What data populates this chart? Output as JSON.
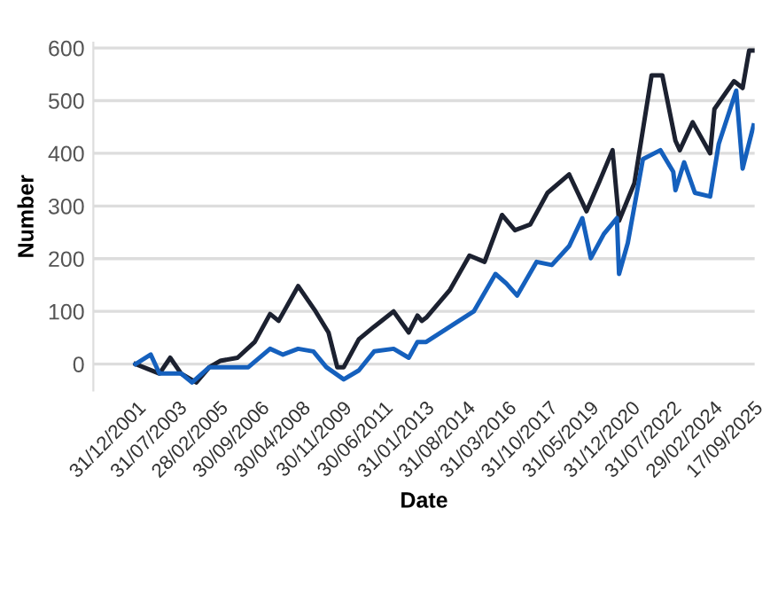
{
  "chart_data": {
    "type": "line",
    "xlabel": "Date",
    "ylabel": "Number",
    "series": [
      {
        "color": "#1c2130",
        "x": [
          "2001-12",
          "2002-11",
          "2003-04",
          "2003-09",
          "2004-04",
          "2004-10",
          "2005-03",
          "2005-11",
          "2006-07",
          "2007-02",
          "2007-06",
          "2008-03",
          "2008-11",
          "2009-05",
          "2009-09",
          "2009-12",
          "2010-07",
          "2011-02",
          "2011-11",
          "2012-06",
          "2012-10",
          "2012-12",
          "2013-02",
          "2014-01",
          "2014-10",
          "2015-05",
          "2016-01",
          "2016-07",
          "2017-02",
          "2017-10",
          "2018-08",
          "2019-04",
          "2019-10",
          "2020-04",
          "2020-07",
          "2021-02",
          "2021-10",
          "2022-03",
          "2022-09",
          "2022-11",
          "2023-05",
          "2024-01",
          "2024-03",
          "2024-12",
          "2025-04",
          "2025-07",
          "2025-09"
        ],
        "values": [
          0,
          -18,
          12,
          -18,
          -35,
          -6,
          6,
          12,
          42,
          95,
          82,
          148,
          100,
          60,
          -6,
          -6,
          47,
          71,
          100,
          60,
          92,
          82,
          88,
          141,
          206,
          194,
          283,
          254,
          265,
          325,
          360,
          290,
          347,
          406,
          272,
          343,
          548,
          548,
          424,
          406,
          459,
          400,
          484,
          537,
          524,
          595,
          595
        ]
      },
      {
        "color": "#1560bd",
        "x": [
          "2001-12",
          "2002-07",
          "2002-11",
          "2003-09",
          "2004-02",
          "2004-10",
          "2005-06",
          "2006-04",
          "2007-02",
          "2007-08",
          "2008-03",
          "2008-10",
          "2009-04",
          "2009-12",
          "2010-07",
          "2011-02",
          "2011-11",
          "2012-06",
          "2012-10",
          "2013-02",
          "2014-01",
          "2014-12",
          "2015-10",
          "2016-03",
          "2016-08",
          "2017-05",
          "2017-12",
          "2018-08",
          "2019-02",
          "2019-06",
          "2019-12",
          "2020-06",
          "2020-07",
          "2020-11",
          "2021-06",
          "2022-02",
          "2022-08",
          "2022-09",
          "2023-01",
          "2023-06",
          "2024-01",
          "2024-05",
          "2025-01",
          "2025-04",
          "2025-09"
        ],
        "values": [
          0,
          18,
          -18,
          -18,
          -35,
          -6,
          -6,
          -6,
          29,
          18,
          29,
          24,
          -6,
          -29,
          -12,
          24,
          29,
          12,
          42,
          42,
          71,
          100,
          171,
          153,
          130,
          194,
          188,
          224,
          277,
          201,
          247,
          277,
          171,
          230,
          389,
          406,
          365,
          330,
          383,
          325,
          318,
          418,
          519,
          371,
          453
        ]
      }
    ],
    "xlim": [
      "2000-05-01",
      "2025-10-01"
    ],
    "xticks": [
      {
        "value": "2001-12-31",
        "label": "31/12/2001"
      },
      {
        "value": "2003-07-31",
        "label": "31/07/2003"
      },
      {
        "value": "2005-02-28",
        "label": "28/02/2005"
      },
      {
        "value": "2006-09-30",
        "label": "30/09/2006"
      },
      {
        "value": "2008-04-30",
        "label": "30/04/2008"
      },
      {
        "value": "2009-11-30",
        "label": "30/11/2009"
      },
      {
        "value": "2011-06-30",
        "label": "30/06/2011"
      },
      {
        "value": "2013-01-31",
        "label": "31/01/2013"
      },
      {
        "value": "2014-08-31",
        "label": "31/08/2014"
      },
      {
        "value": "2016-03-31",
        "label": "31/03/2016"
      },
      {
        "value": "2017-10-31",
        "label": "31/10/2017"
      },
      {
        "value": "2019-05-31",
        "label": "31/05/2019"
      },
      {
        "value": "2020-12-31",
        "label": "31/12/2020"
      },
      {
        "value": "2022-07-31",
        "label": "31/07/2022"
      },
      {
        "value": "2024-02-29",
        "label": "29/02/2024"
      },
      {
        "value": "2025-09-17",
        "label": "17/09/2025"
      }
    ],
    "ylim": [
      -50,
      610
    ],
    "yticks": [
      0,
      100,
      200,
      300,
      400,
      500,
      600
    ],
    "grid": "y",
    "marker": "none",
    "line_style": "solid"
  }
}
